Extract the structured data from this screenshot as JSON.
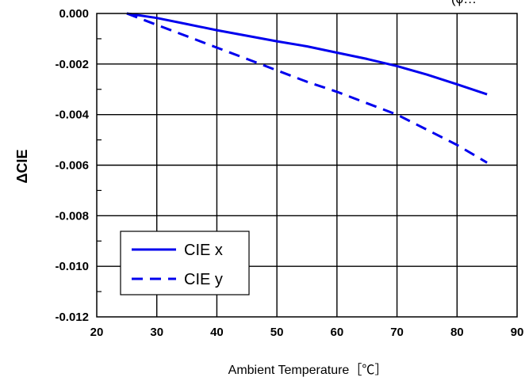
{
  "chart_data": {
    "type": "line",
    "title_fragment": "(ϕ…",
    "xlabel": "Ambient Temperature［℃］",
    "ylabel": "ΔCIE",
    "xlim": [
      20,
      90
    ],
    "ylim": [
      -0.012,
      0.0
    ],
    "grid": true,
    "legend_placement": "bottom-left",
    "x_ticks": [
      20,
      30,
      40,
      50,
      60,
      70,
      80,
      90
    ],
    "y_ticks": [
      0.0,
      -0.002,
      -0.004,
      -0.006,
      -0.008,
      -0.01,
      -0.012
    ],
    "x_tick_labels": [
      "20",
      "30",
      "40",
      "50",
      "60",
      "70",
      "80",
      "90"
    ],
    "y_tick_labels": [
      "0.000",
      "-0.002",
      "-0.004",
      "-0.006",
      "-0.008",
      "-0.010",
      "-0.012"
    ],
    "series": [
      {
        "name": "CIE x",
        "style": "solid",
        "color": "#0000ee",
        "x": [
          25,
          30,
          35,
          40,
          45,
          50,
          55,
          60,
          65,
          70,
          75,
          80,
          85
        ],
        "y": [
          0.0,
          -0.00018,
          -0.00042,
          -0.00066,
          -0.00088,
          -0.0011,
          -0.0013,
          -0.00155,
          -0.0018,
          -0.00208,
          -0.00242,
          -0.0028,
          -0.0032
        ]
      },
      {
        "name": "CIE y",
        "style": "dashed",
        "color": "#0000ee",
        "x": [
          25,
          30,
          35,
          40,
          45,
          50,
          55,
          60,
          65,
          70,
          75,
          80,
          85
        ],
        "y": [
          0.0,
          -0.00045,
          -0.0009,
          -0.00135,
          -0.0018,
          -0.00225,
          -0.0027,
          -0.0031,
          -0.00355,
          -0.004,
          -0.0046,
          -0.0052,
          -0.0059
        ]
      }
    ]
  }
}
